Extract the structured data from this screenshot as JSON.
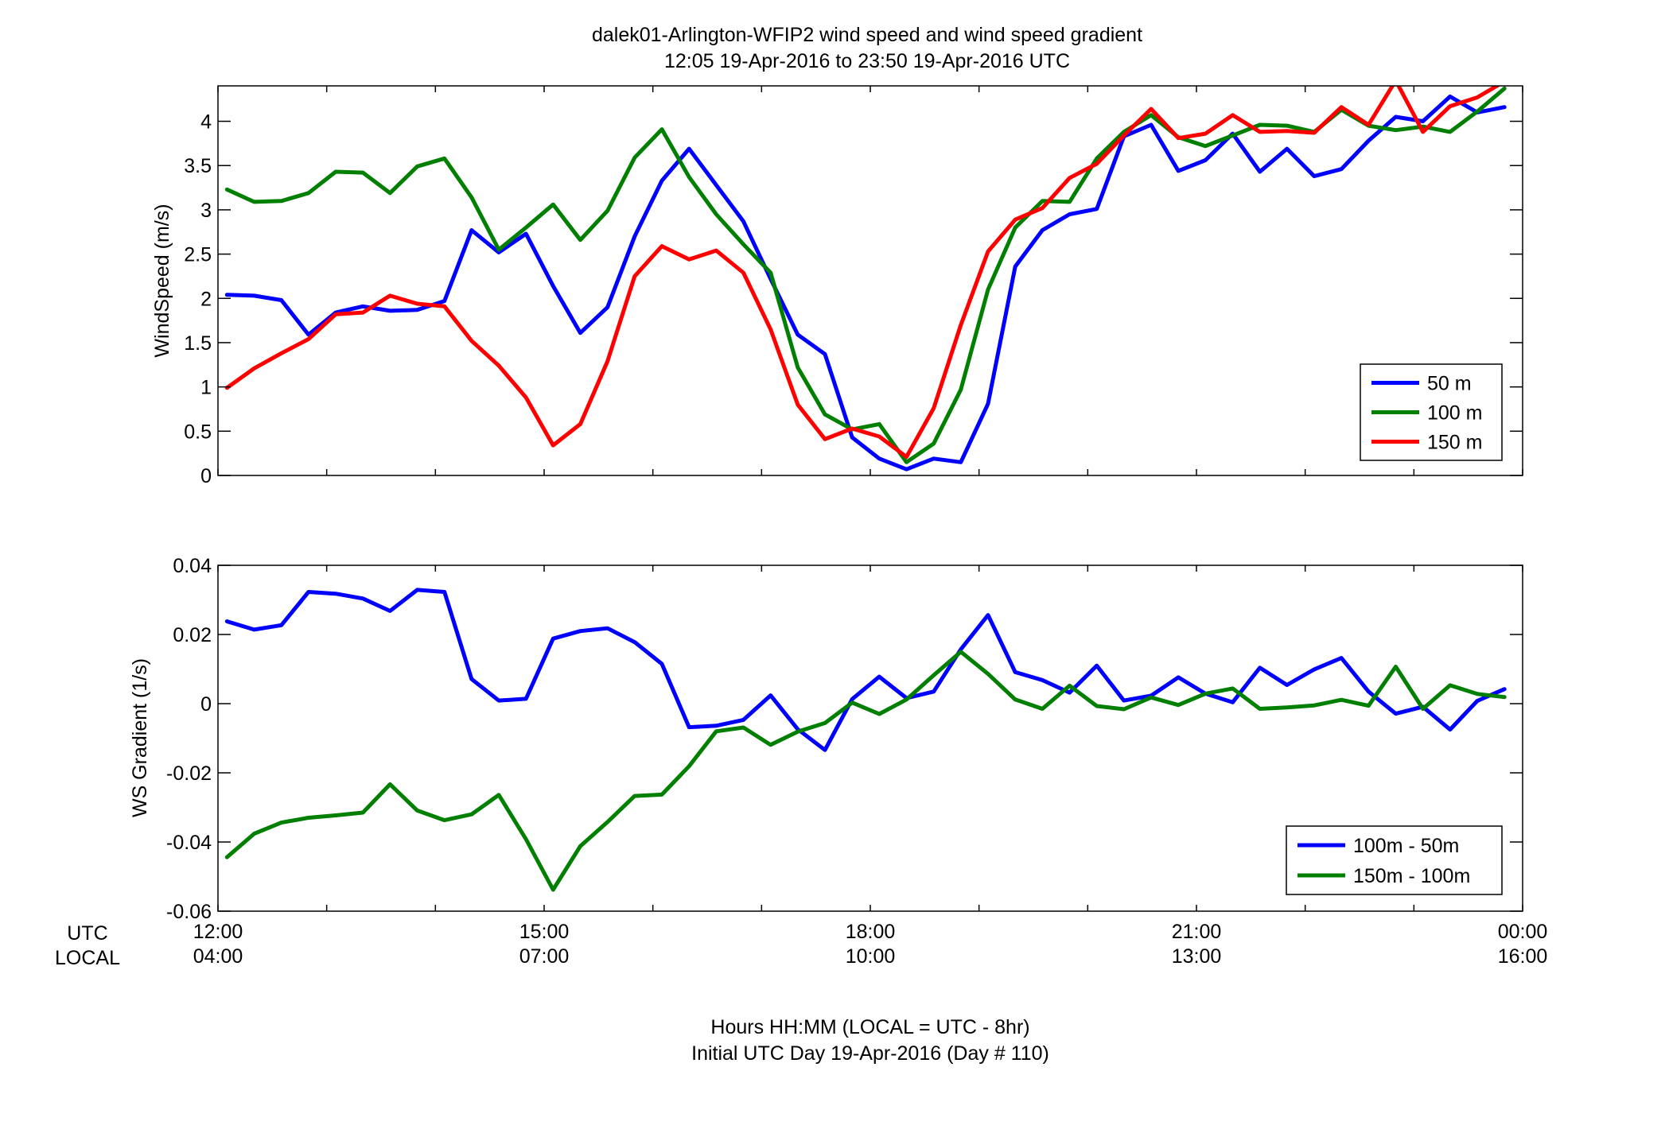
{
  "title": {
    "line1": "dalek01-Arlington-WFIP2  wind speed and wind speed gradient",
    "line2": "12:05 19-Apr-2016 to 23:50 19-Apr-2016  UTC"
  },
  "xaxis": {
    "row_label_utc": "UTC",
    "row_label_local": "LOCAL",
    "utc_ticks": [
      "12:00",
      "15:00",
      "18:00",
      "21:00",
      "00:00"
    ],
    "local_ticks": [
      "04:00",
      "07:00",
      "10:00",
      "13:00",
      "16:00"
    ],
    "label_line1": "Hours HH:MM  (LOCAL = UTC - 8hr)",
    "label_line2": "Initial UTC Day 19-Apr-2016 (Day # 110)"
  },
  "colors": {
    "blue": "#0000ff",
    "green": "#007f00",
    "red": "#ff0000"
  },
  "chart_data": [
    {
      "type": "line",
      "title": "",
      "xlabel": "",
      "ylabel": "WindSpeed (m/s)",
      "xlim": [
        12.0,
        24.0
      ],
      "ylim": [
        0,
        4.4
      ],
      "yticks": [
        0,
        0.5,
        1,
        1.5,
        2,
        2.5,
        3,
        3.5,
        4
      ],
      "ytick_labels": [
        "0",
        "0.5",
        "1",
        "1.5",
        "2",
        "2.5",
        "3",
        "3.5",
        "4"
      ],
      "legend": "bottom-right",
      "grid": false,
      "x": [
        12.083,
        12.333,
        12.583,
        12.833,
        13.083,
        13.333,
        13.583,
        13.833,
        14.083,
        14.333,
        14.583,
        14.833,
        15.083,
        15.333,
        15.583,
        15.833,
        16.083,
        16.333,
        16.583,
        16.833,
        17.083,
        17.333,
        17.583,
        17.833,
        18.083,
        18.333,
        18.583,
        18.833,
        19.083,
        19.333,
        19.583,
        19.833,
        20.083,
        20.333,
        20.583,
        20.833,
        21.083,
        21.333,
        21.583,
        21.833,
        22.083,
        22.333,
        22.583,
        22.833,
        23.083,
        23.333,
        23.583,
        23.833
      ],
      "series": [
        {
          "name": "50 m",
          "color": "#0000ff",
          "values": [
            2.04,
            2.03,
            1.98,
            1.59,
            1.84,
            1.91,
            1.86,
            1.87,
            1.97,
            2.77,
            2.52,
            2.73,
            2.14,
            1.61,
            1.9,
            2.7,
            3.33,
            3.69,
            3.28,
            2.87,
            2.22,
            1.59,
            1.37,
            0.43,
            0.19,
            0.07,
            0.19,
            0.15,
            0.81,
            2.36,
            2.77,
            2.95,
            3.01,
            3.83,
            3.96,
            3.44,
            3.56,
            3.86,
            3.43,
            3.69,
            3.38,
            3.46,
            3.78,
            4.05,
            4.0,
            4.28,
            4.1,
            4.16
          ]
        },
        {
          "name": "100 m",
          "color": "#007f00",
          "values": [
            3.23,
            3.09,
            3.1,
            3.19,
            3.43,
            3.42,
            3.19,
            3.49,
            3.58,
            3.14,
            2.55,
            2.8,
            3.06,
            2.66,
            2.99,
            3.59,
            3.91,
            3.37,
            2.95,
            2.61,
            2.29,
            1.22,
            0.69,
            0.52,
            0.58,
            0.15,
            0.36,
            0.97,
            2.1,
            2.8,
            3.1,
            3.09,
            3.58,
            3.88,
            4.07,
            3.82,
            3.72,
            3.84,
            3.96,
            3.95,
            3.88,
            4.13,
            3.95,
            3.9,
            3.94,
            3.88,
            4.11,
            4.37
          ]
        },
        {
          "name": "150 m",
          "color": "#ff0000",
          "values": [
            0.99,
            1.21,
            1.38,
            1.54,
            1.82,
            1.84,
            2.03,
            1.94,
            1.91,
            1.52,
            1.24,
            0.88,
            0.34,
            0.58,
            1.29,
            2.25,
            2.59,
            2.44,
            2.54,
            2.29,
            1.65,
            0.8,
            0.41,
            0.53,
            0.44,
            0.21,
            0.76,
            1.7,
            2.53,
            2.89,
            3.02,
            3.36,
            3.52,
            3.84,
            4.14,
            3.81,
            3.86,
            4.07,
            3.88,
            3.89,
            3.87,
            4.16,
            3.96,
            4.46,
            3.88,
            4.17,
            4.27,
            4.45
          ]
        }
      ]
    },
    {
      "type": "line",
      "title": "",
      "xlabel": "",
      "ylabel": "WS Gradient (1/s)",
      "xlim": [
        12.0,
        24.0
      ],
      "ylim": [
        -0.06,
        0.04
      ],
      "yticks": [
        -0.06,
        -0.04,
        -0.02,
        0,
        0.02,
        0.04
      ],
      "ytick_labels": [
        "-0.06",
        "-0.04",
        "-0.02",
        "0",
        "0.02",
        "0.04"
      ],
      "legend": "bottom-right",
      "grid": false,
      "x": [
        12.083,
        12.333,
        12.583,
        12.833,
        13.083,
        13.333,
        13.583,
        13.833,
        14.083,
        14.333,
        14.583,
        14.833,
        15.083,
        15.333,
        15.583,
        15.833,
        16.083,
        16.333,
        16.583,
        16.833,
        17.083,
        17.333,
        17.583,
        17.833,
        18.083,
        18.333,
        18.583,
        18.833,
        19.083,
        19.333,
        19.583,
        19.833,
        20.083,
        20.333,
        20.583,
        20.833,
        21.083,
        21.333,
        21.583,
        21.833,
        22.083,
        22.333,
        22.583,
        22.833,
        23.083,
        23.333,
        23.583,
        23.833
      ],
      "series": [
        {
          "name": "100m - 50m",
          "color": "#0000ff",
          "values": [
            0.0238,
            0.0214,
            0.0227,
            0.0323,
            0.0318,
            0.0304,
            0.0268,
            0.0329,
            0.0323,
            0.0071,
            0.0009,
            0.0014,
            0.0188,
            0.021,
            0.0218,
            0.0178,
            0.0115,
            -0.0068,
            -0.0064,
            -0.0047,
            0.0024,
            -0.0074,
            -0.0134,
            0.0013,
            0.0078,
            0.0016,
            0.0035,
            0.0157,
            0.0256,
            0.0091,
            0.0068,
            0.0032,
            0.011,
            0.0009,
            0.0023,
            0.0076,
            0.0029,
            0.0004,
            0.0104,
            0.0054,
            0.0099,
            0.0132,
            0.0035,
            -0.0029,
            -0.0009,
            -0.0075,
            0.0008,
            0.0042
          ]
        },
        {
          "name": "150m - 100m",
          "color": "#007f00",
          "values": [
            -0.0444,
            -0.0376,
            -0.0344,
            -0.033,
            -0.0323,
            -0.0315,
            -0.0233,
            -0.0309,
            -0.0337,
            -0.032,
            -0.0264,
            -0.0392,
            -0.0538,
            -0.0412,
            -0.0342,
            -0.0267,
            -0.0263,
            -0.0181,
            -0.008,
            -0.0069,
            -0.0119,
            -0.0081,
            -0.0056,
            0.0003,
            -0.003,
            0.0012,
            0.0082,
            0.015,
            0.0086,
            0.0012,
            -0.0015,
            0.0052,
            -0.0007,
            -0.0016,
            0.0018,
            -0.0004,
            0.0029,
            0.0044,
            -0.0015,
            -0.0011,
            -0.0005,
            0.0011,
            -0.0006,
            0.0107,
            -0.0015,
            0.0053,
            0.0028,
            0.0019
          ]
        }
      ]
    }
  ]
}
